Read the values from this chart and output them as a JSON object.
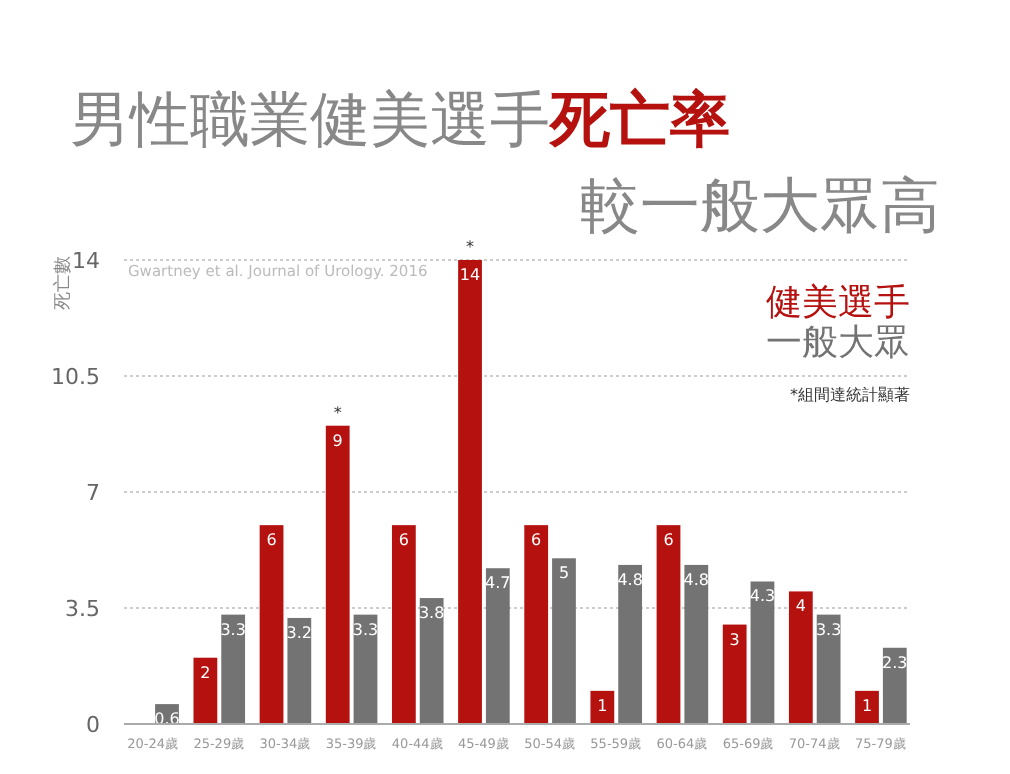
{
  "chart_data": {
    "type": "bar",
    "title": "男性職業健美選手死亡率",
    "subtitle": "較一般大眾高",
    "ylabel": "死亡數",
    "categories": [
      "20-24歲",
      "25-29歲",
      "30-34歲",
      "35-39歲",
      "40-44歲",
      "45-49歲",
      "50-54歲",
      "55-59歲",
      "60-64歲",
      "65-69歲",
      "70-74歲",
      "75-79歲"
    ],
    "series": [
      {
        "name": "健美選手",
        "color": "#b5120f",
        "values": [
          null,
          2,
          6,
          9,
          6,
          14,
          6,
          1,
          6,
          3,
          4,
          1
        ]
      },
      {
        "name": "一般大眾",
        "color": "#737373",
        "values": [
          0.6,
          3.3,
          3.2,
          3.3,
          3.8,
          4.7,
          5,
          4.8,
          4.8,
          4.3,
          3.3,
          2.3
        ]
      }
    ],
    "ylim": [
      0,
      14
    ],
    "yticks": [
      0,
      3.5,
      7,
      10.5,
      14
    ],
    "grid": "y",
    "legend": "top right",
    "data_labels": true,
    "annotations": [
      {
        "text": "*",
        "x": "35-39歲",
        "y": 9
      },
      {
        "text": "*",
        "x": "45-49歲",
        "y": 14
      },
      "Gwartney et al. Journal of Urology. 2016",
      "*組間達統計顯著"
    ]
  }
}
